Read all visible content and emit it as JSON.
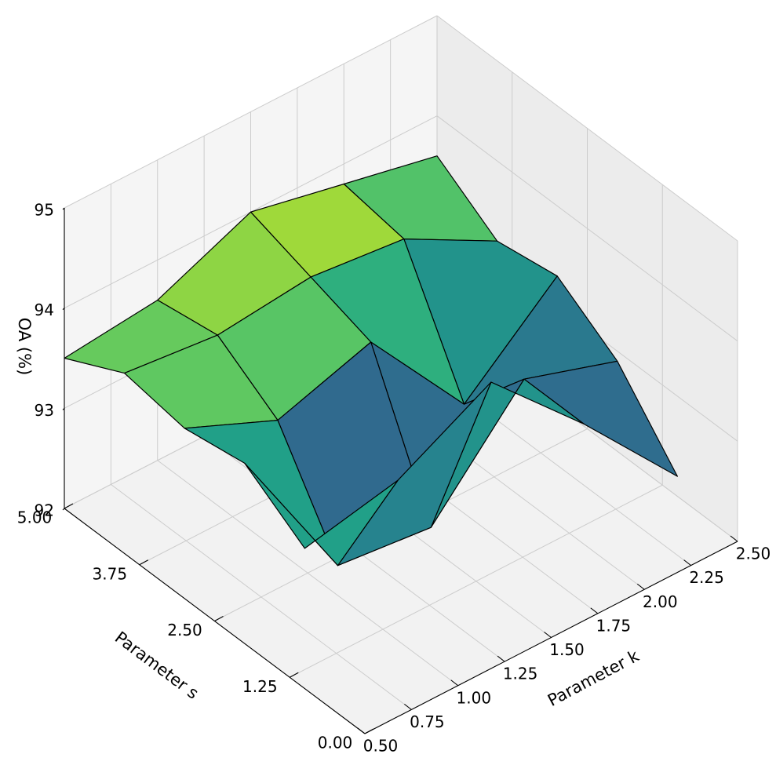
{
  "chart_data": {
    "type": "surface",
    "xlabel": "Parameter k",
    "ylabel": "Parameter s",
    "zlabel": "OA (%)",
    "x_ticks": [
      "0.50",
      "0.75",
      "1.00",
      "1.25",
      "1.50",
      "1.75",
      "2.00",
      "2.25",
      "2.50"
    ],
    "y_ticks": [
      "0.00",
      "1.25",
      "2.50",
      "3.75",
      "5.00"
    ],
    "z_ticks": [
      "92",
      "93",
      "94",
      "95"
    ],
    "xlim": [
      0.5,
      2.5
    ],
    "ylim": [
      0.0,
      5.0
    ],
    "zlim": [
      92,
      95
    ],
    "grid": true,
    "colormap": "viridis",
    "view": {
      "elev": 30,
      "azim": 225
    },
    "x": [
      0.5,
      1.0,
      1.5,
      2.0,
      2.5
    ],
    "y": [
      1.0,
      2.0,
      3.0,
      4.0,
      5.0
    ],
    "z": [
      [
        93.4,
        93.6,
        94.1,
        93.2,
        92.2
      ],
      [
        93.8,
        92.3,
        92.2,
        93.2,
        92.9
      ],
      [
        93.7,
        93.3,
        93.6,
        92.5,
        93.3
      ],
      [
        93.8,
        93.7,
        93.8,
        93.7,
        93.2
      ],
      [
        93.5,
        93.6,
        94.0,
        93.8,
        93.6
      ]
    ]
  }
}
